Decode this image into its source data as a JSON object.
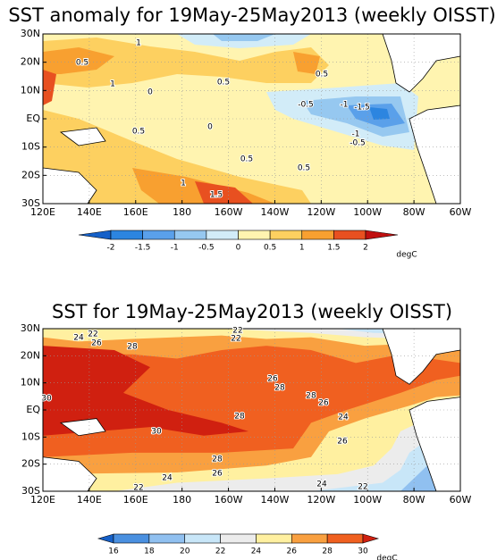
{
  "maps": [
    {
      "title": "SST anomaly for 19May-25May2013 (weekly OISST)",
      "lon_labels": [
        "120E",
        "140E",
        "160E",
        "180",
        "160W",
        "140W",
        "120W",
        "100W",
        "80W",
        "60W"
      ],
      "lat_labels": [
        "30N",
        "20N",
        "10N",
        "EQ",
        "10S",
        "20S",
        "30S"
      ],
      "contour_labels": [
        1,
        0.5,
        1,
        0,
        0.5,
        0.5,
        -0.5,
        -1,
        -1.5,
        0,
        0.5,
        0.5,
        0.5,
        1,
        1.5,
        -1,
        -0.5
      ],
      "colorbar": {
        "levels": [
          -2,
          -1.5,
          -1,
          -0.5,
          0,
          0.5,
          1,
          1.5,
          2
        ],
        "colors": [
          "#1560c8",
          "#2c85e0",
          "#5aa0ea",
          "#96c8f0",
          "#d2ecf8",
          "#fff4b0",
          "#fdd060",
          "#f8a030",
          "#e85020",
          "#c01010"
        ],
        "unit": "degC"
      }
    },
    {
      "title": "SST for 19May-25May2013 (weekly OISST)",
      "lon_labels": [
        "120E",
        "140E",
        "160E",
        "180",
        "160W",
        "140W",
        "120W",
        "100W",
        "80W",
        "60W"
      ],
      "lat_labels": [
        "30N",
        "20N",
        "10N",
        "EQ",
        "10S",
        "20S",
        "30S"
      ],
      "contour_labels": [
        24,
        22,
        22,
        22,
        26,
        28,
        26,
        28,
        28,
        26,
        30,
        28,
        24,
        30,
        26,
        28,
        26,
        24,
        22,
        24,
        22
      ],
      "colorbar": {
        "levels": [
          16,
          18,
          20,
          22,
          24,
          26,
          28,
          30
        ],
        "colors": [
          "#1560c8",
          "#4a90e0",
          "#90c0f0",
          "#c8e6f8",
          "#ececec",
          "#fff0a0",
          "#f9a040",
          "#f06020",
          "#d02010"
        ],
        "unit": "degC"
      }
    }
  ]
}
